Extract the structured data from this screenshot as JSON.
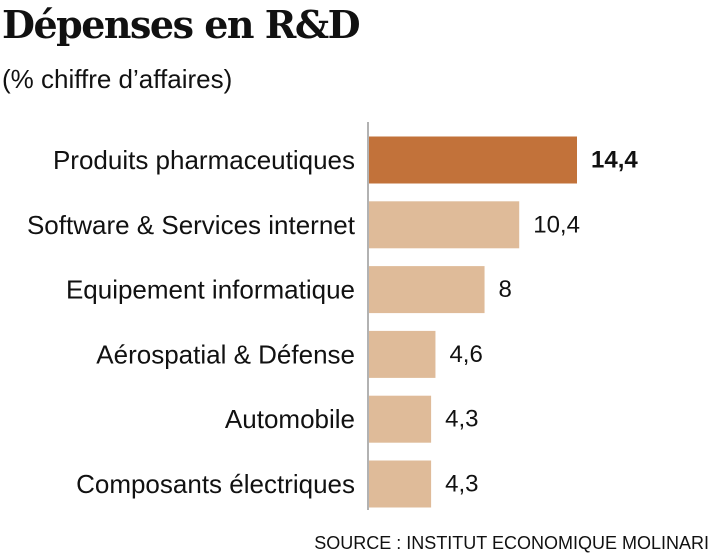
{
  "header": {
    "title": "Dépenses en R&D",
    "subtitle": "(% chiffre d’affaires)"
  },
  "footer": {
    "source": "SOURCE : INSTITUT ECONOMIQUE MOLINARI"
  },
  "colors": {
    "highlight_bar": "#C2723A",
    "bar": "#DFBB99",
    "highlight_text": "#C2723A",
    "axis": "#999999"
  },
  "chart_data": {
    "type": "bar",
    "orientation": "horizontal",
    "categories": [
      "Produits pharmaceutiques",
      "Software & Services internet",
      "Equipement informatique",
      "Aérospatial & Défense",
      "Automobile",
      "Composants électriques"
    ],
    "values": [
      14.4,
      10.4,
      8,
      4.6,
      4.3,
      4.3
    ],
    "value_labels": [
      "14,4",
      "10,4",
      "8",
      "4,6",
      "4,3",
      "4,3"
    ],
    "highlight_index": 0,
    "title": "Dépenses en R&D",
    "subtitle": "(% chiffre d’affaires)",
    "xlim": [
      0,
      14.4
    ],
    "grid": false
  }
}
